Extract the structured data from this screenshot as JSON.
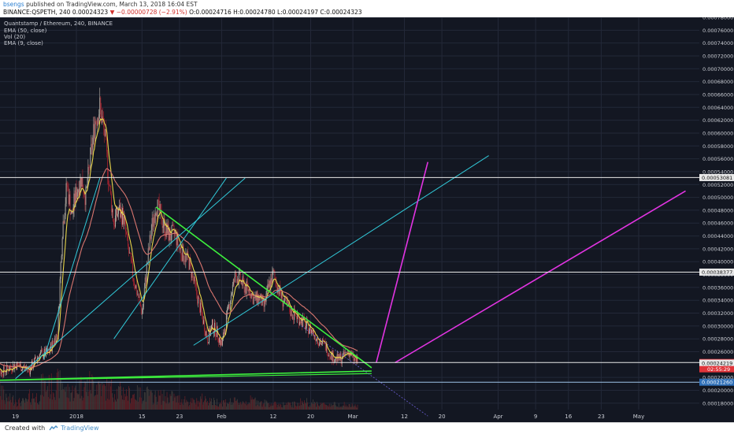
{
  "header": {
    "author": "bsengs",
    "published": "published on TradingView.com, March 13, 2018 16:04 EST",
    "symbol_line_prefix": "BINANCE:QSPETH, 240",
    "last_value": "0.00024323",
    "change": "−0.00000728 (−2.91%)",
    "ohlc": "O:0.00024716  H:0.00024780  L:0.00024197  C:0.00024323"
  },
  "legend": {
    "title": "Quantstamp / Ethereum, 240, BINANCE",
    "ema50": "EMA (50, close)",
    "vol": "Vol (20)",
    "ema9": "EMA (9, close)"
  },
  "footer": {
    "created_with": "Created with",
    "brand": "TradingView"
  },
  "colors": {
    "background": "#131722",
    "grid": "#232838",
    "candle_up": "#b9b3a8",
    "candle_down": "#a8232f",
    "ema_fast": "#e8d54a",
    "ema_slow": "#d9766f",
    "trendline_green": "#3df03d",
    "trendline_cyan": "#31c9d8",
    "projection_magenta": "#e234e2",
    "horizontal_level": "#e8e8e8",
    "price_tag_red": "#e0343a",
    "price_tag_blue": "#2e6fb8"
  },
  "chart_data": {
    "type": "candlestick",
    "title": "Quantstamp / Ethereum, 240, BINANCE",
    "ylim": [
      0.00017,
      0.00078
    ],
    "y_ticks": [
      "0.00078000",
      "0.00076000",
      "0.00074000",
      "0.00072000",
      "0.00070000",
      "0.00068000",
      "0.00066000",
      "0.00064000",
      "0.00062000",
      "0.00060000",
      "0.00058000",
      "0.00056000",
      "0.00054000",
      "0.00052000",
      "0.00050000",
      "0.00048000",
      "0.00046000",
      "0.00044000",
      "0.00042000",
      "0.00040000",
      "0.00038000",
      "0.00036000",
      "0.00034000",
      "0.00032000",
      "0.00030000",
      "0.00028000",
      "0.00026000",
      "0.00022000",
      "0.00020000",
      "0.00018000"
    ],
    "x_ticks": [
      {
        "label": "19",
        "day": -13
      },
      {
        "label": "2018",
        "day": 0
      },
      {
        "label": "15",
        "day": 14
      },
      {
        "label": "23",
        "day": 22
      },
      {
        "label": "Feb",
        "day": 31
      },
      {
        "label": "12",
        "day": 42
      },
      {
        "label": "20",
        "day": 50
      },
      {
        "label": "Mar",
        "day": 59
      },
      {
        "label": "12",
        "day": 70
      },
      {
        "label": "20",
        "day": 78
      },
      {
        "label": "Apr",
        "day": 90
      },
      {
        "label": "9",
        "day": 98
      },
      {
        "label": "16",
        "day": 105
      },
      {
        "label": "23",
        "day": 112
      },
      {
        "label": "May",
        "day": 120
      }
    ],
    "price_path": [
      [
        -18,
        0.000245
      ],
      [
        -16,
        0.000228
      ],
      [
        -13,
        0.00024
      ],
      [
        -10,
        0.000232
      ],
      [
        -8,
        0.000255
      ],
      [
        -6,
        0.000258
      ],
      [
        -4,
        0.00029
      ],
      [
        -3,
        0.00045
      ],
      [
        -2,
        0.00052
      ],
      [
        -1,
        0.00047
      ],
      [
        0,
        0.00051
      ],
      [
        1,
        0.00053
      ],
      [
        2,
        0.0005
      ],
      [
        3,
        0.00056
      ],
      [
        4,
        0.00062
      ],
      [
        5,
        0.00064
      ],
      [
        6,
        0.0006
      ],
      [
        7,
        0.00052
      ],
      [
        8,
        0.00046
      ],
      [
        9,
        0.00048
      ],
      [
        10,
        0.00047
      ],
      [
        11,
        0.00042
      ],
      [
        12,
        0.00038
      ],
      [
        13,
        0.00035
      ],
      [
        14,
        0.00032
      ],
      [
        15,
        0.00039
      ],
      [
        16,
        0.00045
      ],
      [
        17,
        0.00049
      ],
      [
        18,
        0.00047
      ],
      [
        19,
        0.00045
      ],
      [
        20,
        0.00044
      ],
      [
        21,
        0.000445
      ],
      [
        22,
        0.00042
      ],
      [
        23,
        0.00041
      ],
      [
        24,
        0.0004
      ],
      [
        25,
        0.00037
      ],
      [
        26,
        0.00034
      ],
      [
        27,
        0.00031
      ],
      [
        28,
        0.00028
      ],
      [
        29,
        0.0003
      ],
      [
        30,
        0.00029
      ],
      [
        31,
        0.00027
      ],
      [
        32,
        0.00031
      ],
      [
        33,
        0.00035
      ],
      [
        34,
        0.00038
      ],
      [
        35,
        0.00037
      ],
      [
        36,
        0.00036
      ],
      [
        37,
        0.000355
      ],
      [
        38,
        0.00034
      ],
      [
        39,
        0.000345
      ],
      [
        40,
        0.00033
      ],
      [
        41,
        0.00036
      ],
      [
        42,
        0.00038
      ],
      [
        43,
        0.00036
      ],
      [
        44,
        0.00034
      ],
      [
        45,
        0.00033
      ],
      [
        46,
        0.00032
      ],
      [
        47,
        0.000315
      ],
      [
        48,
        0.00031
      ],
      [
        49,
        0.0003
      ],
      [
        50,
        0.000295
      ],
      [
        51,
        0.000285
      ],
      [
        52,
        0.000275
      ],
      [
        53,
        0.00027
      ],
      [
        54,
        0.000258
      ],
      [
        55,
        0.00025
      ],
      [
        56,
        0.000248
      ],
      [
        57,
        0.000252
      ],
      [
        58,
        0.000262
      ],
      [
        59,
        0.00025
      ],
      [
        60,
        0.000243
      ]
    ],
    "volume_levels": [
      0.8,
      0.4,
      0.3,
      0.5,
      0.9,
      1.0,
      0.7,
      0.9,
      1.0,
      0.8,
      0.7,
      0.6,
      0.6,
      0.5,
      0.5,
      0.4,
      0.3,
      0.4,
      0.3,
      0.3,
      0.3,
      0.35,
      0.25,
      0.2,
      0.2,
      0.3,
      0.25,
      0.2,
      0.2,
      0.15,
      0.15,
      0.15
    ],
    "levels": [
      {
        "price": 0.00053081,
        "label": "0.00053081",
        "style": "white"
      },
      {
        "price": 0.00038377,
        "label": "0.00038377",
        "style": "white"
      },
      {
        "price": 0.00024323,
        "label": "0.00024323",
        "style": "red"
      },
      {
        "price": 0.00024219,
        "label": "0.00024219",
        "style": "white-small"
      },
      {
        "price": 0.0002126,
        "label": "0.00021260",
        "style": "blue"
      }
    ],
    "countdown": "02:55:29",
    "drawings": {
      "green_descending": [
        [
          17,
          0.000485
        ],
        [
          63,
          0.000235
        ]
      ],
      "green_base": [
        [
          -20,
          0.000215
        ],
        [
          63,
          0.00023
        ]
      ],
      "green_lower": [
        [
          -20,
          0.000215
        ],
        [
          63,
          0.000226
        ]
      ],
      "cyan_1": [
        [
          -13,
          0.000218
        ],
        [
          36,
          0.00053
        ]
      ],
      "cyan_2": [
        [
          25,
          0.00027
        ],
        [
          88,
          0.000565
        ]
      ],
      "cyan_3": [
        [
          -7,
          0.000248
        ],
        [
          5,
          0.00053
        ]
      ],
      "cyan_4": [
        [
          8,
          0.00028
        ],
        [
          32,
          0.00053
        ]
      ],
      "magenta_steep": [
        [
          64,
          0.000243
        ],
        [
          75,
          0.000555
        ]
      ],
      "magenta_shallow": [
        [
          68,
          0.000243
        ],
        [
          130,
          0.00051
        ]
      ]
    }
  }
}
